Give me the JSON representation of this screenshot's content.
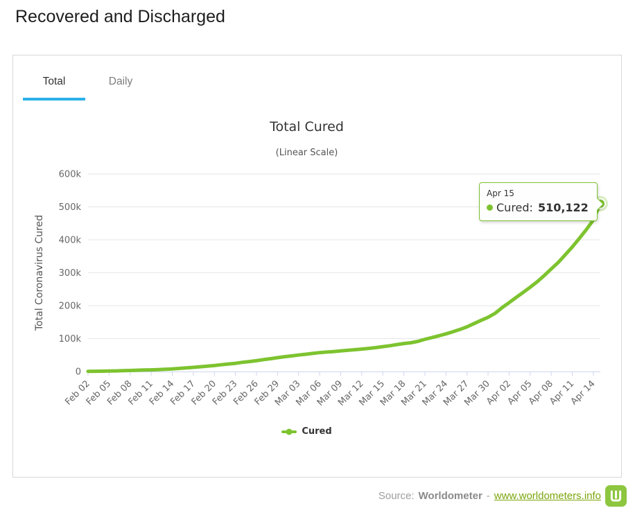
{
  "page": {
    "title": "Recovered and Discharged"
  },
  "tabs": [
    {
      "label": "Total",
      "active": true
    },
    {
      "label": "Daily",
      "active": false
    }
  ],
  "chart_data": {
    "type": "line",
    "title": "Total Cured",
    "subtitle": "(Linear Scale)",
    "xlabel": "",
    "ylabel": "Total Coronavirus Cured",
    "ylim": [
      0,
      600000
    ],
    "grid": true,
    "legend_position": "bottom",
    "y_ticks": [
      0,
      100000,
      200000,
      300000,
      400000,
      500000,
      600000
    ],
    "y_tick_labels": [
      "0",
      "100k",
      "200k",
      "300k",
      "400k",
      "500k",
      "600k"
    ],
    "x_tick_interval": 3,
    "x_tick_labels": [
      "Feb 02",
      "Feb 05",
      "Feb 08",
      "Feb 11",
      "Feb 14",
      "Feb 17",
      "Feb 20",
      "Feb 23",
      "Feb 26",
      "Feb 29",
      "Mar 03",
      "Mar 06",
      "Mar 09",
      "Mar 12",
      "Mar 15",
      "Mar 18",
      "Mar 21",
      "Mar 24",
      "Mar 27",
      "Mar 30",
      "Apr 02",
      "Apr 05",
      "Apr 08",
      "Apr 11",
      "Apr 14"
    ],
    "categories": [
      "Feb 02",
      "Feb 03",
      "Feb 04",
      "Feb 05",
      "Feb 06",
      "Feb 07",
      "Feb 08",
      "Feb 09",
      "Feb 10",
      "Feb 11",
      "Feb 12",
      "Feb 13",
      "Feb 14",
      "Feb 15",
      "Feb 16",
      "Feb 17",
      "Feb 18",
      "Feb 19",
      "Feb 20",
      "Feb 21",
      "Feb 22",
      "Feb 23",
      "Feb 24",
      "Feb 25",
      "Feb 26",
      "Feb 27",
      "Feb 28",
      "Feb 29",
      "Mar 01",
      "Mar 02",
      "Mar 03",
      "Mar 04",
      "Mar 05",
      "Mar 06",
      "Mar 07",
      "Mar 08",
      "Mar 09",
      "Mar 10",
      "Mar 11",
      "Mar 12",
      "Mar 13",
      "Mar 14",
      "Mar 15",
      "Mar 16",
      "Mar 17",
      "Mar 18",
      "Mar 19",
      "Mar 20",
      "Mar 21",
      "Mar 22",
      "Mar 23",
      "Mar 24",
      "Mar 25",
      "Mar 26",
      "Mar 27",
      "Mar 28",
      "Mar 29",
      "Mar 30",
      "Mar 31",
      "Apr 01",
      "Apr 02",
      "Apr 03",
      "Apr 04",
      "Apr 05",
      "Apr 06",
      "Apr 07",
      "Apr 08",
      "Apr 09",
      "Apr 10",
      "Apr 11",
      "Apr 12",
      "Apr 13",
      "Apr 14",
      "Apr 15"
    ],
    "series": [
      {
        "name": "Cured",
        "color": "#7dc32f",
        "values": [
          631,
          852,
          1124,
          1487,
          1996,
          2596,
          3219,
          3918,
          4636,
          5150,
          5915,
          6728,
          8096,
          9419,
          10942,
          12649,
          14446,
          16232,
          18014,
          20659,
          22886,
          24932,
          27905,
          30384,
          32898,
          36287,
          39002,
          42162,
          45115,
          47450,
          50001,
          52522,
          55001,
          57388,
          59110,
          60694,
          62570,
          64391,
          66239,
          68285,
          70251,
          72528,
          75590,
          78331,
          81958,
          84963,
          87409,
          91673,
          97875,
          102913,
          108580,
          114228,
          120765,
          127880,
          135687,
          145614,
          155289,
          164566,
          176907,
          194034,
          209347,
          224862,
          240302,
          255945,
          272663,
          291442,
          311388,
          331426,
          354482,
          378328,
          404031,
          431202,
          460243,
          510122
        ]
      }
    ]
  },
  "tooltip": {
    "date": "Apr 15",
    "series_label": "Cured:",
    "value": "510,122"
  },
  "legend": {
    "label": "Cured"
  },
  "footer": {
    "source_label": "Source:",
    "source_name": "Worldometer",
    "separator": "-",
    "link": "www.worldometers.info",
    "logo": "worldometer-w-logo"
  },
  "colors": {
    "series_green": "#7dc32f",
    "accent_blue": "#2cb0e8",
    "logo_green": "#8dc63f",
    "link_green": "#7aa50a",
    "grid": "#e6e6e6",
    "axis_line": "#ccd6eb"
  }
}
